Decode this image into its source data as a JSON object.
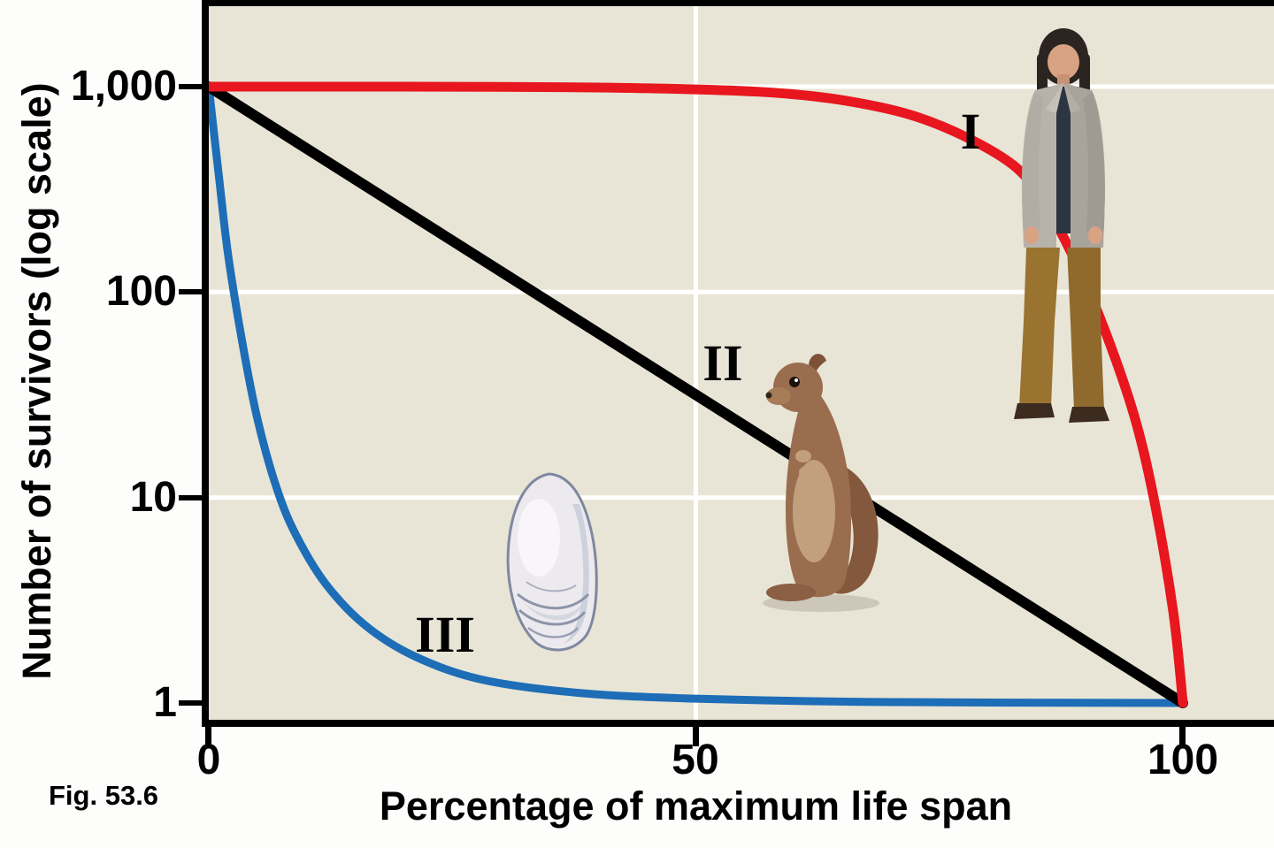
{
  "figure": {
    "caption": "Fig. 53.6"
  },
  "chart_data": {
    "type": "line",
    "xlabel": "Percentage of maximum life span",
    "ylabel": "Number of survivors (log scale)",
    "x_range": [
      0,
      100
    ],
    "y_range": [
      1,
      1000
    ],
    "y_scale": "log",
    "x_tick_values": [
      0,
      50,
      100
    ],
    "x_tick_labels": [
      "0",
      "50",
      "100"
    ],
    "y_tick_values": [
      1000,
      100,
      10,
      1
    ],
    "y_tick_labels": [
      "1,000",
      "100",
      "10",
      "1"
    ],
    "plot_background": "#e8e5d6",
    "grid": {
      "color": "#ffffff",
      "vertical_x": [
        50
      ],
      "horizontal_y": [
        1000,
        100,
        10
      ]
    },
    "legend": "none",
    "series": [
      {
        "label": "I",
        "organism": "human",
        "color": "#e8161e",
        "stroke_width": 11,
        "points": [
          [
            0,
            1000
          ],
          [
            10,
            1000
          ],
          [
            20,
            1000
          ],
          [
            30,
            998
          ],
          [
            40,
            990
          ],
          [
            50,
            970
          ],
          [
            58,
            935
          ],
          [
            65,
            860
          ],
          [
            72,
            730
          ],
          [
            78,
            560
          ],
          [
            83,
            400
          ],
          [
            86,
            260
          ],
          [
            89,
            140
          ],
          [
            92,
            65
          ],
          [
            95,
            25
          ],
          [
            97,
            10
          ],
          [
            99,
            2.8
          ],
          [
            100,
            1
          ]
        ]
      },
      {
        "label": "II",
        "organism": "ground squirrel",
        "color": "#000000",
        "stroke_width": 12,
        "points": [
          [
            0,
            1000
          ],
          [
            100,
            1
          ]
        ]
      },
      {
        "label": "III",
        "organism": "oyster",
        "color": "#1d6db7",
        "stroke_width": 9,
        "points": [
          [
            0,
            1000
          ],
          [
            1,
            380
          ],
          [
            2,
            150
          ],
          [
            3.5,
            55
          ],
          [
            5,
            24
          ],
          [
            7,
            11
          ],
          [
            9,
            6.5
          ],
          [
            12,
            3.8
          ],
          [
            16,
            2.4
          ],
          [
            21,
            1.7
          ],
          [
            28,
            1.3
          ],
          [
            38,
            1.12
          ],
          [
            50,
            1.05
          ],
          [
            70,
            1.01
          ],
          [
            100,
            1
          ]
        ]
      }
    ]
  }
}
